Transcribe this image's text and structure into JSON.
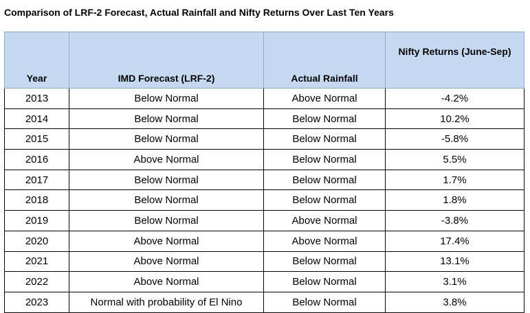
{
  "title": "Comparison of LRF-2 Forecast, Actual Rainfall and Nifty Returns Over Last Ten Years",
  "columns": [
    "Year",
    "IMD Forecast (LRF-2)",
    "Actual Rainfall",
    "Nifty Returns (June-Sep)"
  ],
  "rows": [
    [
      "2013",
      "Below Normal",
      "Above Normal",
      "-4.2%"
    ],
    [
      "2014",
      "Below Normal",
      "Below Normal",
      "10.2%"
    ],
    [
      "2015",
      "Below Normal",
      "Below Normal",
      "-5.8%"
    ],
    [
      "2016",
      "Above Normal",
      "Below Normal",
      "5.5%"
    ],
    [
      "2017",
      "Below Normal",
      "Below Normal",
      "1.7%"
    ],
    [
      "2018",
      "Below Normal",
      "Below Normal",
      "1.8%"
    ],
    [
      "2019",
      "Below Normal",
      "Above Normal",
      "-3.8%"
    ],
    [
      "2020",
      "Above Normal",
      "Above Normal",
      "17.4%"
    ],
    [
      "2021",
      "Above Normal",
      "Below Normal",
      "13.1%"
    ],
    [
      "2022",
      "Above Normal",
      "Below Normal",
      "3.1%"
    ],
    [
      "2023",
      "Normal with probability of El Nino",
      "Below Normal",
      "3.8%"
    ]
  ],
  "colors": {
    "header_bg": "#c5d9f1",
    "header_border": "#8ea9c8",
    "cell_border": "#000000"
  }
}
